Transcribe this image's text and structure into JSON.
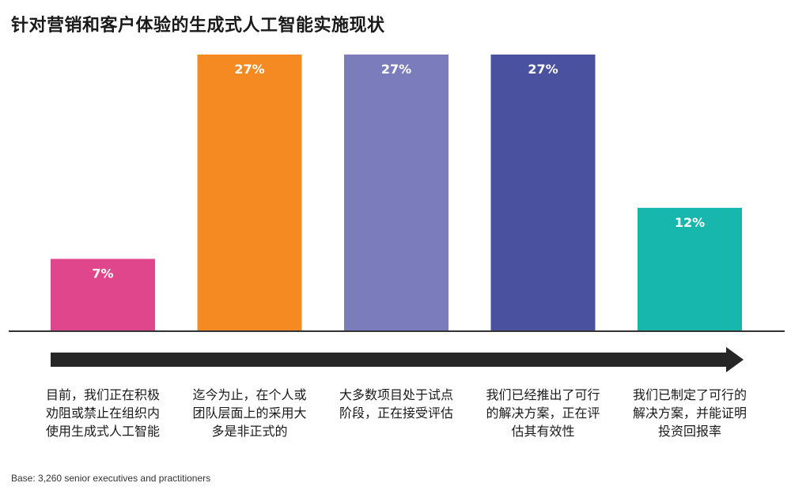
{
  "title": "针对营销和客户体验的生成式人工智能实施现状",
  "footnote": "Base: 3,260 senior executives and practitioners",
  "chart_data": {
    "type": "bar",
    "title": "针对营销和客户体验的生成式人工智能实施现状",
    "categories": [
      "目前，我们正在积极劝阻或禁止在组织内使用生成式人工智能",
      "迄今为止，在个人或团队层面上的采用大多是非正式的",
      "大多数项目处于试点阶段，正在接受评估",
      "我们已经推出了可行的解决方案，正在评估其有效性",
      "我们已制定了可行的解决方案，并能证明投资回报率"
    ],
    "values": [
      7,
      27,
      27,
      27,
      12
    ],
    "data_labels": [
      "7%",
      "27%",
      "27%",
      "27%",
      "12%"
    ],
    "unit": "%",
    "ylim": [
      0,
      27
    ],
    "colors": [
      "#e0468b",
      "#f58a22",
      "#7a7cbc",
      "#4a52a0",
      "#17b7ad"
    ],
    "grid": false,
    "legend": "none"
  }
}
